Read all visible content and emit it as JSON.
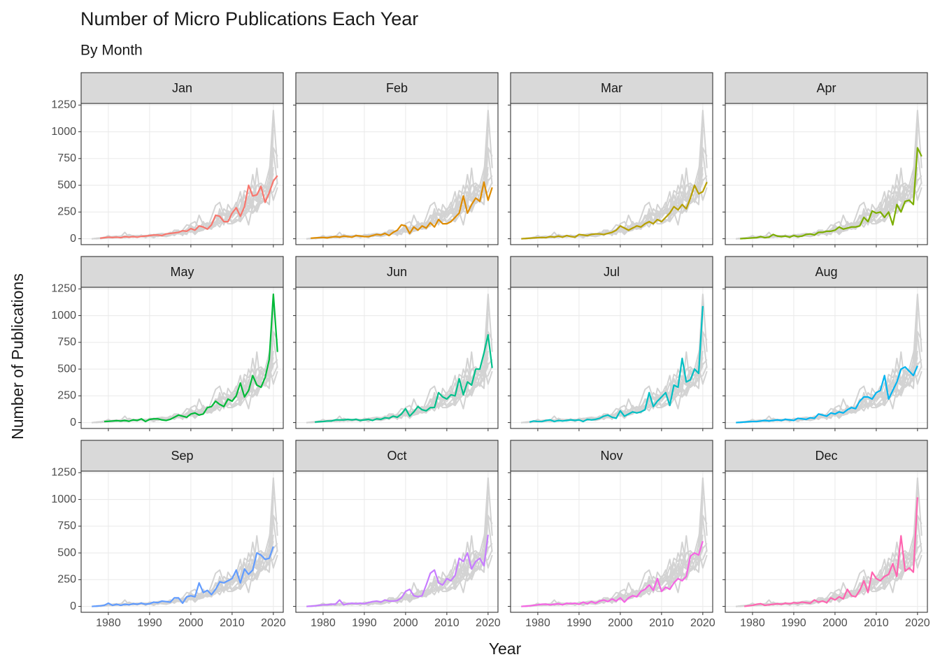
{
  "chart_data": {
    "type": "line",
    "title": "Number of Micro Publications Each Year",
    "subtitle": "By Month",
    "x_label": "Year",
    "y_label": "Number of Publications",
    "grid": true,
    "context_color": "#d3d3d3",
    "xlim": [
      1973.4,
      2022.4
    ],
    "xticks": [
      1980,
      1990,
      2000,
      2010,
      2020
    ],
    "ylim": [
      -55,
      1265
    ],
    "yticks": [
      0,
      250,
      500,
      750,
      1000,
      1250
    ],
    "x": [
      1976,
      1977,
      1978,
      1979,
      1980,
      1981,
      1982,
      1983,
      1984,
      1985,
      1986,
      1987,
      1988,
      1989,
      1990,
      1991,
      1992,
      1993,
      1994,
      1995,
      1996,
      1997,
      1998,
      1999,
      2000,
      2001,
      2002,
      2003,
      2004,
      2005,
      2006,
      2007,
      2008,
      2009,
      2010,
      2011,
      2012,
      2013,
      2014,
      2015,
      2016,
      2017,
      2018,
      2019,
      2020,
      2021
    ],
    "series": [
      {
        "name": "Jan",
        "color": "#F8766D",
        "values": [
          null,
          null,
          5,
          10,
          15,
          12,
          15,
          10,
          20,
          15,
          20,
          15,
          22,
          25,
          30,
          35,
          35,
          30,
          45,
          50,
          55,
          60,
          75,
          70,
          95,
          80,
          120,
          110,
          90,
          130,
          220,
          210,
          160,
          160,
          240,
          290,
          210,
          300,
          500,
          400,
          410,
          490,
          340,
          430,
          540,
          590
        ]
      },
      {
        "name": "Feb",
        "color": "#DE8C00",
        "values": [
          null,
          5,
          8,
          10,
          12,
          8,
          15,
          20,
          15,
          25,
          20,
          15,
          30,
          25,
          20,
          20,
          30,
          40,
          35,
          50,
          30,
          60,
          80,
          130,
          120,
          50,
          110,
          80,
          120,
          100,
          150,
          110,
          180,
          140,
          140,
          160,
          200,
          240,
          400,
          240,
          320,
          380,
          350,
          530,
          360,
          480
        ]
      },
      {
        "name": "Mar",
        "color": "#B79F00",
        "values": [
          0,
          2,
          5,
          8,
          10,
          12,
          10,
          20,
          15,
          25,
          15,
          30,
          20,
          15,
          40,
          35,
          30,
          40,
          45,
          45,
          40,
          50,
          60,
          80,
          120,
          100,
          80,
          100,
          120,
          110,
          140,
          160,
          140,
          180,
          160,
          200,
          240,
          300,
          270,
          320,
          280,
          380,
          500,
          420,
          440,
          530
        ]
      },
      {
        "name": "Apr",
        "color": "#7CAE00",
        "values": [
          null,
          0,
          3,
          5,
          8,
          10,
          20,
          10,
          15,
          40,
          25,
          20,
          25,
          15,
          30,
          20,
          25,
          40,
          45,
          35,
          60,
          60,
          70,
          70,
          80,
          110,
          90,
          100,
          110,
          110,
          120,
          200,
          160,
          260,
          240,
          250,
          200,
          250,
          130,
          320,
          250,
          350,
          360,
          320,
          850,
          770
        ]
      },
      {
        "name": "May",
        "color": "#00BA38",
        "values": [
          null,
          null,
          null,
          10,
          12,
          15,
          18,
          15,
          20,
          12,
          25,
          20,
          35,
          10,
          30,
          35,
          35,
          25,
          20,
          30,
          50,
          70,
          60,
          50,
          80,
          90,
          70,
          80,
          140,
          150,
          200,
          170,
          150,
          220,
          200,
          250,
          370,
          240,
          300,
          440,
          350,
          330,
          420,
          590,
          1200,
          660
        ]
      },
      {
        "name": "Jun",
        "color": "#00C08B",
        "values": [
          null,
          null,
          5,
          8,
          10,
          15,
          15,
          25,
          25,
          25,
          30,
          25,
          30,
          20,
          25,
          30,
          20,
          35,
          30,
          45,
          40,
          60,
          50,
          80,
          130,
          60,
          100,
          150,
          120,
          110,
          140,
          140,
          280,
          240,
          220,
          260,
          250,
          410,
          260,
          380,
          350,
          500,
          500,
          650,
          820,
          510
        ]
      },
      {
        "name": "Jul",
        "color": "#00BFC4",
        "values": [
          null,
          null,
          5,
          15,
          10,
          10,
          20,
          25,
          10,
          20,
          15,
          20,
          25,
          20,
          25,
          10,
          30,
          25,
          30,
          40,
          60,
          70,
          50,
          40,
          110,
          60,
          80,
          100,
          90,
          100,
          120,
          280,
          150,
          200,
          240,
          280,
          160,
          350,
          330,
          600,
          380,
          400,
          500,
          460,
          1090,
          null
        ]
      },
      {
        "name": "Aug",
        "color": "#00B4F0",
        "values": [
          0,
          2,
          5,
          8,
          10,
          10,
          15,
          20,
          15,
          20,
          25,
          20,
          30,
          25,
          20,
          40,
          35,
          30,
          45,
          40,
          80,
          70,
          60,
          90,
          80,
          100,
          90,
          120,
          140,
          130,
          200,
          240,
          240,
          220,
          280,
          300,
          440,
          220,
          300,
          380,
          500,
          520,
          480,
          440,
          530,
          null
        ]
      },
      {
        "name": "Sep",
        "color": "#619CFF",
        "values": [
          0,
          2,
          5,
          10,
          30,
          10,
          20,
          10,
          20,
          15,
          25,
          20,
          30,
          20,
          25,
          40,
          35,
          50,
          45,
          40,
          80,
          80,
          30,
          90,
          100,
          90,
          220,
          130,
          150,
          110,
          160,
          230,
          220,
          240,
          260,
          340,
          220,
          350,
          300,
          340,
          500,
          480,
          440,
          450,
          560,
          null
        ]
      },
      {
        "name": "Oct",
        "color": "#C77CFF",
        "values": [
          0,
          2,
          5,
          10,
          15,
          15,
          20,
          20,
          60,
          15,
          25,
          30,
          25,
          30,
          25,
          35,
          45,
          50,
          40,
          60,
          50,
          50,
          55,
          80,
          140,
          160,
          100,
          90,
          100,
          200,
          310,
          340,
          220,
          200,
          260,
          240,
          290,
          450,
          420,
          500,
          350,
          420,
          450,
          380,
          670,
          null
        ]
      },
      {
        "name": "Nov",
        "color": "#F564E3",
        "values": [
          0,
          2,
          5,
          10,
          15,
          20,
          20,
          15,
          20,
          25,
          15,
          30,
          25,
          30,
          20,
          40,
          25,
          45,
          30,
          50,
          60,
          45,
          70,
          50,
          80,
          40,
          80,
          100,
          90,
          140,
          160,
          200,
          150,
          260,
          140,
          180,
          160,
          220,
          260,
          240,
          280,
          470,
          500,
          480,
          610,
          null
        ]
      },
      {
        "name": "Dec",
        "color": "#FF64B0",
        "values": [
          null,
          null,
          0,
          5,
          10,
          20,
          25,
          10,
          15,
          20,
          25,
          20,
          30,
          25,
          35,
          30,
          40,
          35,
          30,
          60,
          40,
          50,
          35,
          80,
          60,
          90,
          70,
          160,
          100,
          90,
          150,
          240,
          130,
          320,
          260,
          240,
          280,
          300,
          400,
          280,
          660,
          330,
          360,
          320,
          1020,
          null
        ]
      }
    ]
  }
}
